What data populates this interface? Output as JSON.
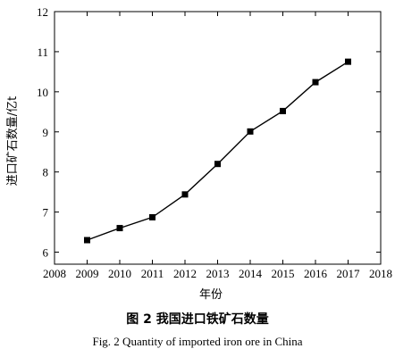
{
  "chart_data": {
    "type": "line",
    "x": [
      2009,
      2010,
      2011,
      2012,
      2013,
      2014,
      2015,
      2016,
      2017
    ],
    "series": [
      {
        "values": [
          6.3,
          6.6,
          6.87,
          7.44,
          8.2,
          9.01,
          9.52,
          10.24,
          10.75
        ]
      }
    ],
    "xlabel": "年份",
    "ylabel": "进口矿石数量/亿t",
    "xlim": [
      2008,
      2018
    ],
    "ylim": [
      5.7,
      12
    ],
    "xticks": [
      2008,
      2009,
      2010,
      2011,
      2012,
      2013,
      2014,
      2015,
      2016,
      2017,
      2018
    ],
    "yticks": [
      6,
      7,
      8,
      9,
      10,
      11,
      12
    ],
    "marker": "square",
    "grid": false,
    "line_color": "#000000"
  },
  "captions": {
    "cn": "图 2    我国进口铁矿石数量",
    "en": "Fig. 2    Quantity of imported iron ore in China"
  }
}
